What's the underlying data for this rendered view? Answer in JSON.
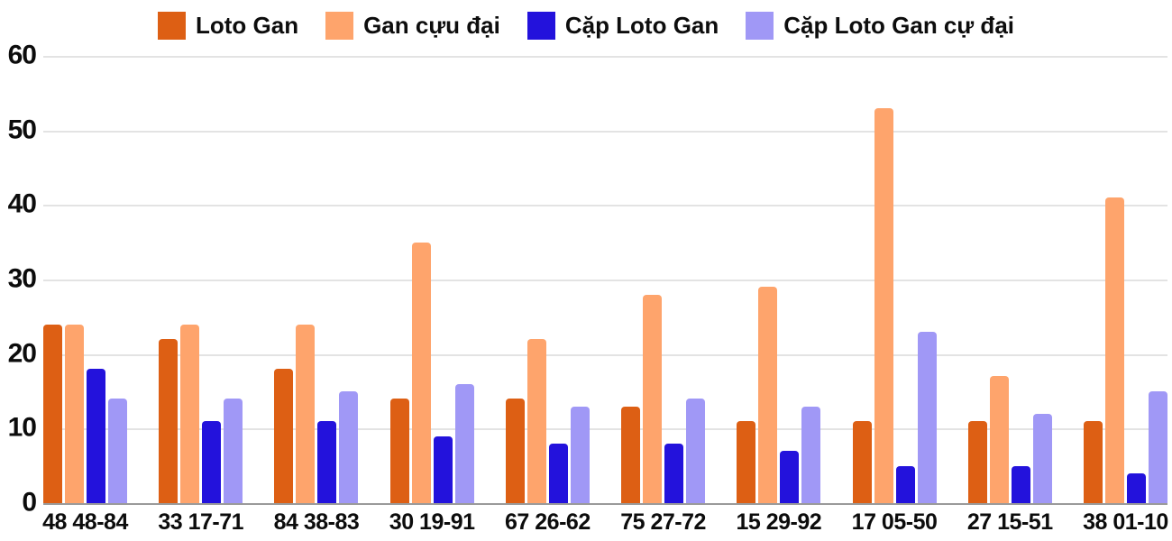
{
  "colors": {
    "background": "#ffffff",
    "gridline": "#e3e3e3",
    "axis_line": "#9a9a9a",
    "text": "#0c0c0c"
  },
  "chart_data": {
    "type": "bar",
    "title": "",
    "xlabel": "",
    "ylabel": "",
    "ylim": [
      0,
      60
    ],
    "ytick_step": 10,
    "y_tick_labels": [
      "0",
      "10",
      "20",
      "30",
      "40",
      "50",
      "60"
    ],
    "grid": true,
    "legend_position": "top",
    "categories": [
      "48 48-84",
      "33 17-71",
      "84 38-83",
      "30 19-91",
      "67 26-62",
      "75 27-72",
      "15 29-92",
      "17 05-50",
      "27 15-51",
      "38 01-10"
    ],
    "series": [
      {
        "name": "Loto Gan",
        "color": "#dd5f14",
        "values": [
          24,
          22,
          18,
          14,
          14,
          13,
          11,
          11,
          11,
          11
        ]
      },
      {
        "name": "Gan cựu đại",
        "color": "#fea46c",
        "values": [
          24,
          24,
          24,
          35,
          22,
          28,
          29,
          53,
          17,
          41
        ]
      },
      {
        "name": "Cặp Loto Gan",
        "color": "#2312dc",
        "values": [
          18,
          11,
          11,
          9,
          8,
          8,
          7,
          5,
          5,
          4
        ]
      },
      {
        "name": "Cặp Loto Gan cự đại",
        "color": "#a098f6",
        "values": [
          14,
          14,
          15,
          16,
          13,
          14,
          13,
          23,
          12,
          15
        ]
      }
    ]
  }
}
